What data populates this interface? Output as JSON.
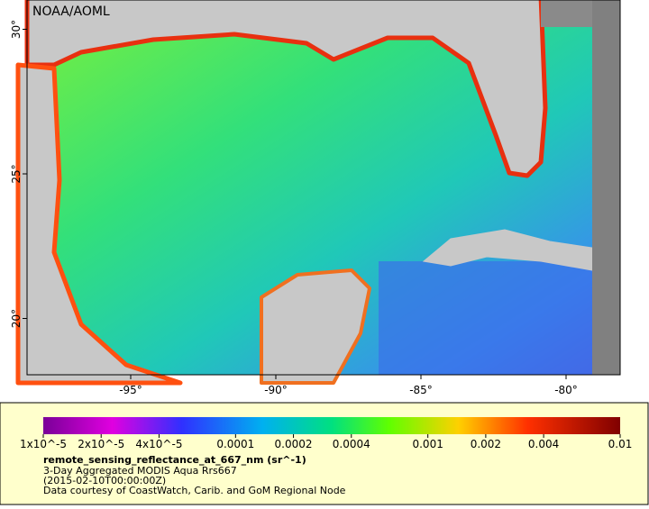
{
  "map": {
    "credit": "NOAA/AOML",
    "lat_ticks": [
      {
        "value": 30,
        "label": "30°"
      },
      {
        "value": 25,
        "label": "25°"
      },
      {
        "value": 20,
        "label": "20°"
      }
    ],
    "lon_ticks": [
      {
        "value": -95,
        "label": "-95°"
      },
      {
        "value": -90,
        "label": "-90°"
      },
      {
        "value": -85,
        "label": "-85°"
      },
      {
        "value": -80,
        "label": "-80°"
      }
    ]
  },
  "colorbar": {
    "ticks": [
      {
        "value": 1e-05,
        "label": "1x10^-5"
      },
      {
        "value": 2e-05,
        "label": "2x10^-5"
      },
      {
        "value": 4e-05,
        "label": "4x10^-5"
      },
      0.0001,
      0.0002,
      0.0004,
      0.001,
      0.002,
      0.004,
      0.01
    ]
  },
  "legend": {
    "variable": "remote_sensing_reflectance_at_667_nm (sr^-1)",
    "product": "3-Day Aggregated MODIS Aqua Rrs667",
    "time": "(2015-02-10T00:00:00Z)",
    "source": "Data courtesy of CoastWatch, Carib. and GoM Regional Node"
  }
}
